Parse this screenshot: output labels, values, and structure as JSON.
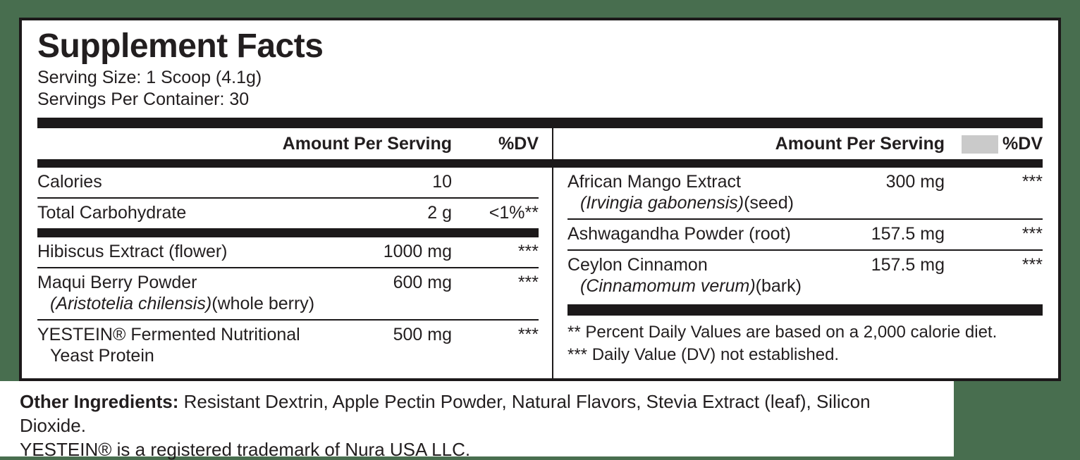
{
  "colors": {
    "background": "#486e4f",
    "label_background": "#ffffff",
    "ink": "#221e1f",
    "gray_placeholder": "#cacaca"
  },
  "header": {
    "title": "Supplement Facts",
    "serving_size": "Serving Size: 1 Scoop (4.1g)",
    "servings_per_container": "Servings Per Container: 30"
  },
  "left_column": {
    "header": {
      "amount_label": "Amount Per Serving",
      "dv_label": "%DV"
    },
    "rows": [
      {
        "name": "Calories",
        "amount": "10",
        "dv": "",
        "sep_after": "thin"
      },
      {
        "name": "Total Carbohydrate",
        "amount": "2 g",
        "dv": "<1%**",
        "sep_after": "thick"
      },
      {
        "name": "Hibiscus Extract (flower)",
        "amount": "1000 mg",
        "dv": "***",
        "sep_after": "thin"
      },
      {
        "name": "Maqui Berry Powder",
        "sub_italic": "(Aristotelia chilensis)",
        "sub_regular": "(whole berry)",
        "amount": "600 mg",
        "dv": "***",
        "sep_after": "thin"
      },
      {
        "name": "YESTEIN® Fermented Nutritional",
        "sub_regular": "Yeast Protein",
        "amount": "500 mg",
        "dv": "***",
        "sep_after": "none"
      }
    ]
  },
  "right_column": {
    "header": {
      "amount_label": "Amount Per Serving",
      "dv_label": "%DV",
      "has_gray_box": true
    },
    "rows": [
      {
        "name": "African Mango Extract",
        "sub_italic": "(Irvingia gabonensis)",
        "sub_regular": "(seed)",
        "amount": "300 mg",
        "dv": "***",
        "sep_after": "thin"
      },
      {
        "name": "Ashwagandha Powder (root)",
        "amount": "157.5 mg",
        "dv": "***",
        "sep_after": "thin"
      },
      {
        "name": "Ceylon Cinnamon",
        "sub_italic": "(Cinnamomum verum)",
        "sub_regular": "(bark)",
        "amount": "157.5 mg",
        "dv": "***",
        "sep_after": "thick"
      }
    ],
    "footnotes": [
      "** Percent Daily Values are based on a 2,000 calorie diet.",
      "*** Daily Value (DV) not established."
    ]
  },
  "footer": {
    "other_ingredients_label": "Other Ingredients:",
    "other_ingredients_text": " Resistant Dextrin, Apple Pectin Powder, Natural Flavors, Stevia Extract (leaf), Silicon Dioxide.",
    "trademark_text": "YESTEIN® is a registered trademark of Nura USA LLC."
  }
}
